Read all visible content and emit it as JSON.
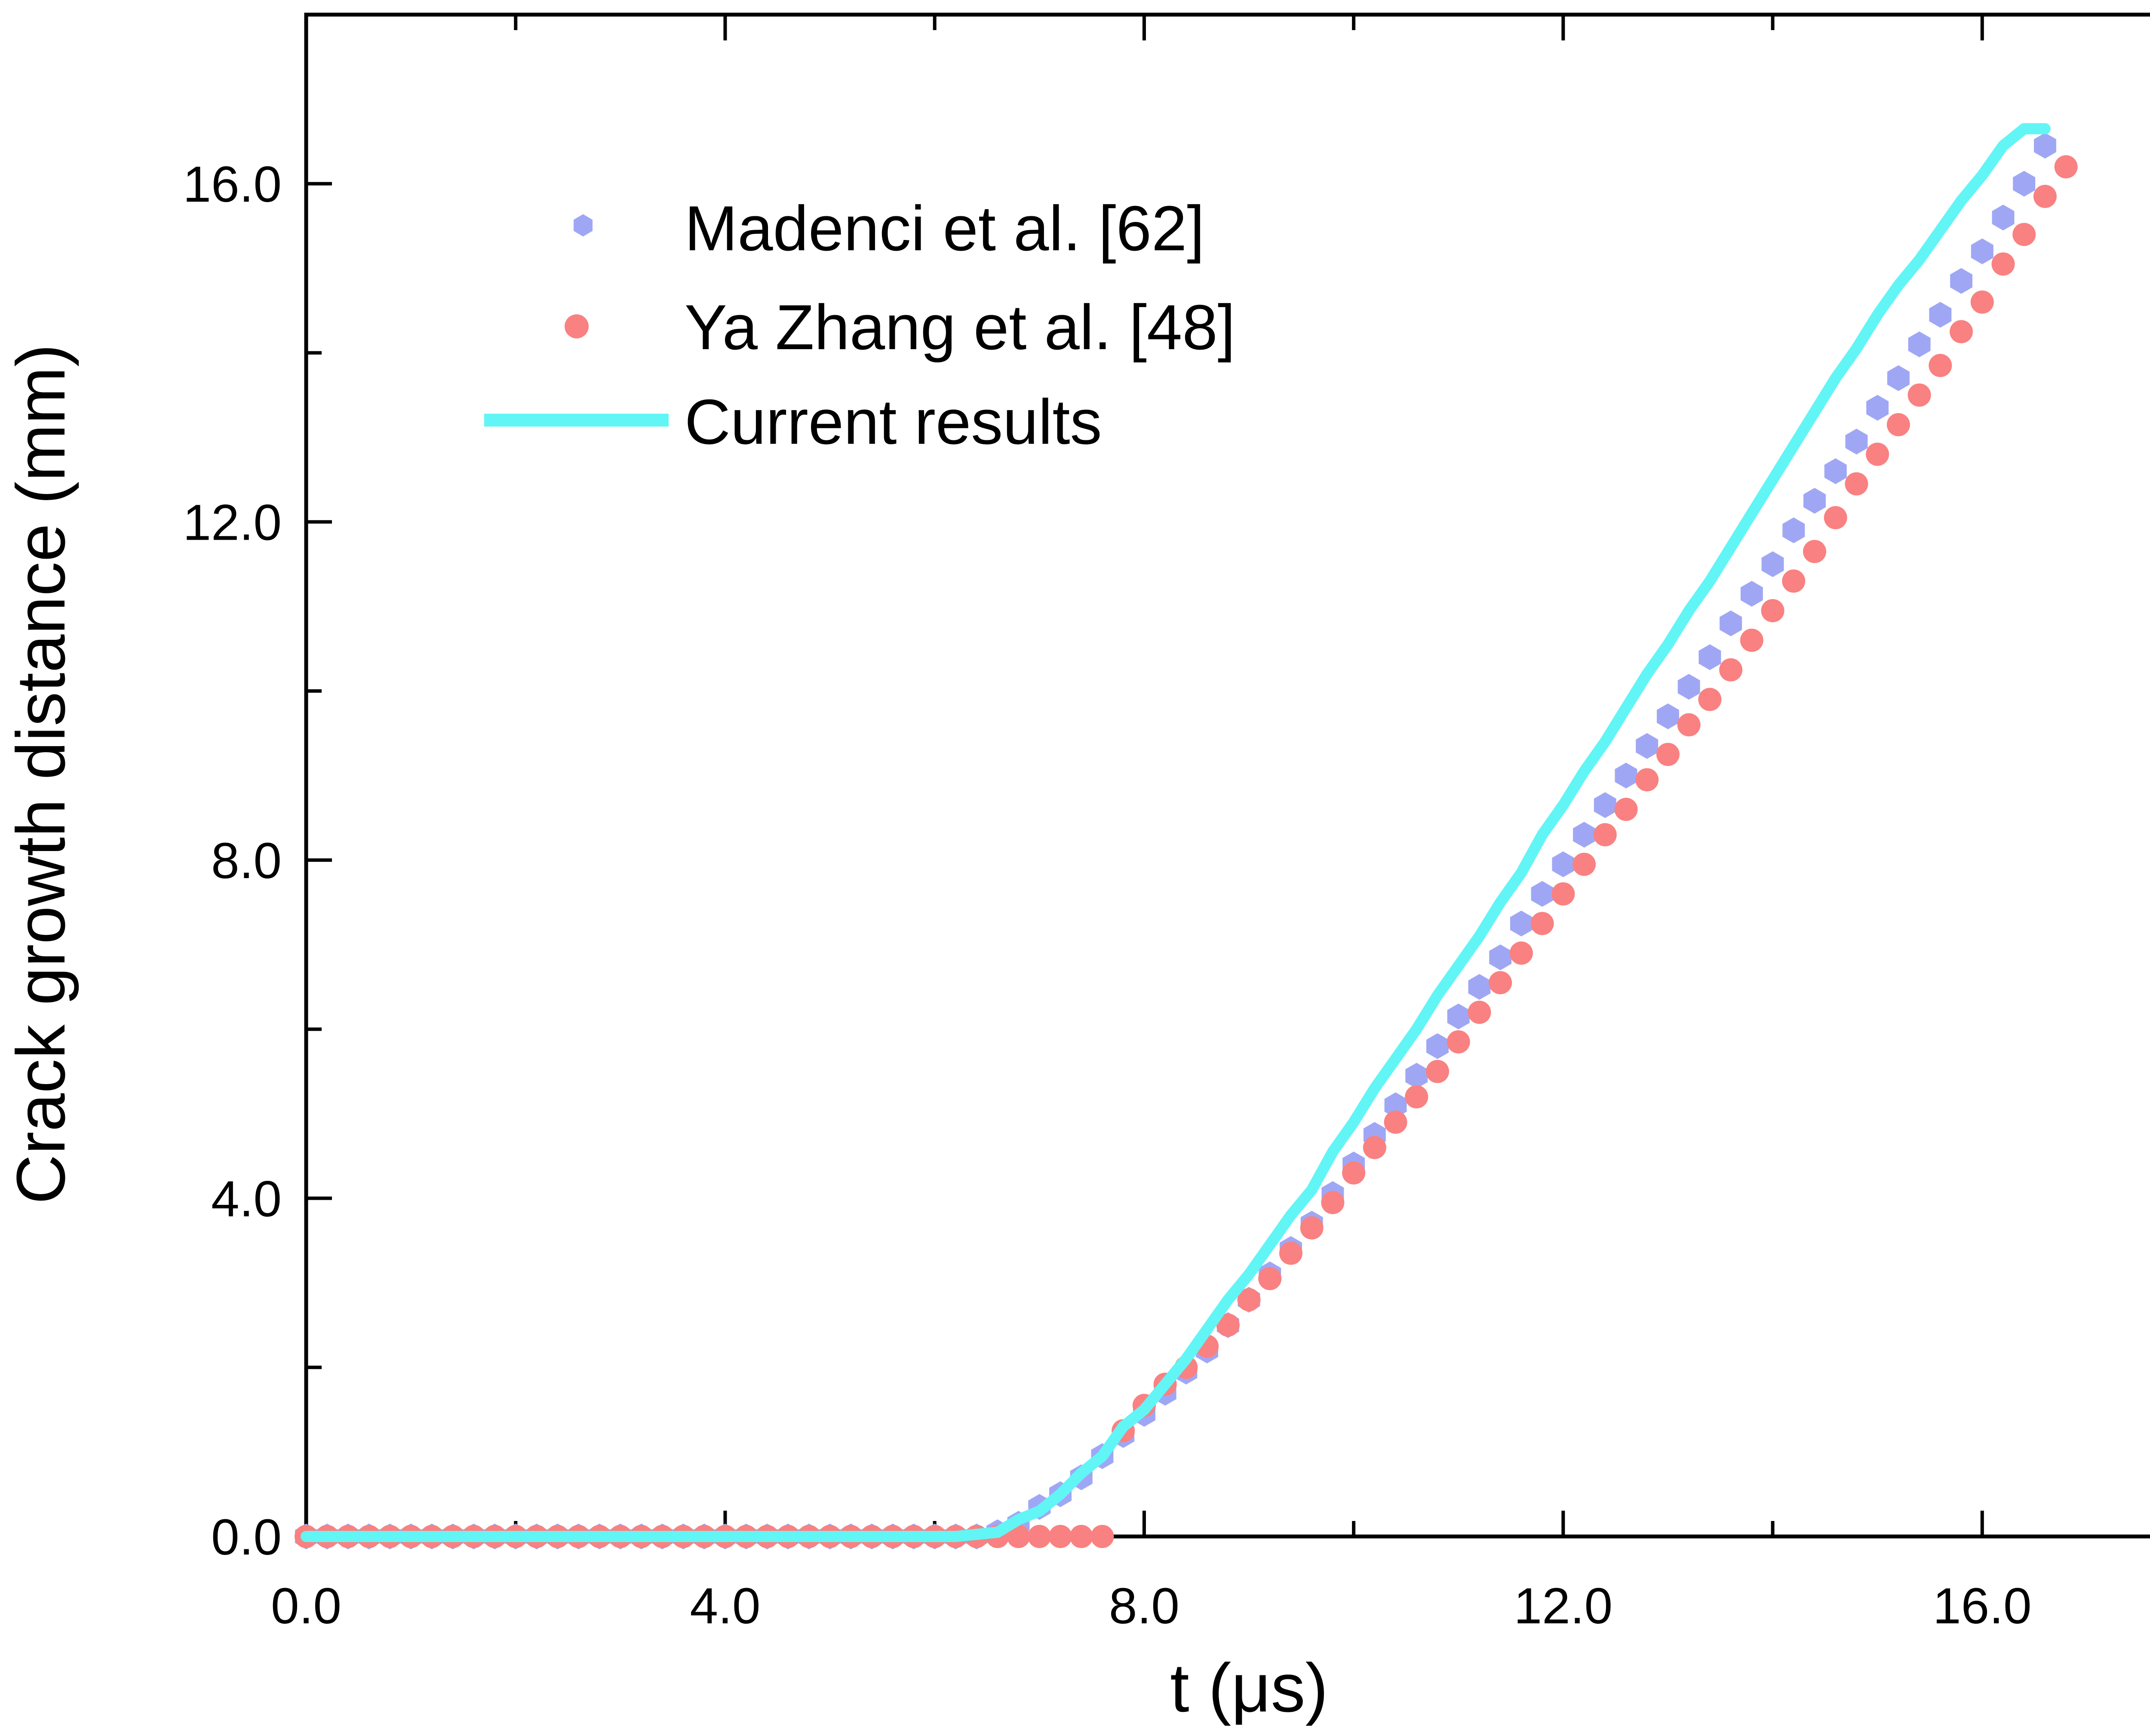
{
  "chart_data": {
    "type": "scatter",
    "title": "",
    "xlabel": "t (μs)",
    "ylabel": "Crack growth distance (mm)",
    "xlim": [
      0,
      18
    ],
    "ylim": [
      0,
      18
    ],
    "xticks": [
      0,
      4,
      8,
      12,
      16
    ],
    "yticks": [
      0,
      4,
      8,
      12,
      16
    ],
    "xtick_labels": [
      "0.0",
      "4.0",
      "8.0",
      "12.0",
      "16.0"
    ],
    "ytick_labels": [
      "0.0",
      "4.0",
      "8.0",
      "12.0",
      "16.0"
    ],
    "minor_ticks": true,
    "grid": false,
    "legend_position": "top-left",
    "series": [
      {
        "name": "Madenci et al. [62]",
        "marker": "hexagon",
        "color": "#9fa7f5",
        "x": [
          0.0,
          0.2,
          0.4,
          0.6,
          0.8,
          1.0,
          1.2,
          1.4,
          1.6,
          1.8,
          2.0,
          2.2,
          2.4,
          2.6,
          2.8,
          3.0,
          3.2,
          3.4,
          3.6,
          3.8,
          4.0,
          4.2,
          4.4,
          4.6,
          4.8,
          5.0,
          5.2,
          5.4,
          5.6,
          5.8,
          6.0,
          6.2,
          6.4,
          6.6,
          6.8,
          7.0,
          7.2,
          7.4,
          7.6,
          7.8,
          8.0,
          8.2,
          8.4,
          8.6,
          8.8,
          9.0,
          9.2,
          9.4,
          9.6,
          9.8,
          10.0,
          10.2,
          10.4,
          10.6,
          10.8,
          11.0,
          11.2,
          11.4,
          11.6,
          11.8,
          12.0,
          12.2,
          12.4,
          12.6,
          12.8,
          13.0,
          13.2,
          13.4,
          13.6,
          13.8,
          14.0,
          14.2,
          14.4,
          14.6,
          14.8,
          15.0,
          15.2,
          15.4,
          15.6,
          15.8,
          16.0,
          16.2,
          16.4,
          16.6
        ],
        "y": [
          0,
          0,
          0,
          0,
          0,
          0,
          0,
          0,
          0,
          0,
          0,
          0,
          0,
          0,
          0,
          0,
          0,
          0,
          0,
          0,
          0,
          0,
          0,
          0,
          0,
          0,
          0,
          0,
          0,
          0,
          0,
          0,
          0,
          0.05,
          0.15,
          0.35,
          0.5,
          0.7,
          0.95,
          1.2,
          1.45,
          1.7,
          1.95,
          2.2,
          2.5,
          2.8,
          3.1,
          3.4,
          3.7,
          4.05,
          4.4,
          4.75,
          5.1,
          5.45,
          5.8,
          6.15,
          6.5,
          6.85,
          7.25,
          7.6,
          7.95,
          8.3,
          8.65,
          9.0,
          9.35,
          9.7,
          10.05,
          10.4,
          10.8,
          11.15,
          11.5,
          11.9,
          12.25,
          12.6,
          12.95,
          13.35,
          13.7,
          14.1,
          14.45,
          14.85,
          15.2,
          15.6,
          16.0,
          16.45
        ]
      },
      {
        "name": "Ya Zhang et al. [48]",
        "marker": "circle",
        "color": "#f98181",
        "x": [
          0.0,
          0.2,
          0.4,
          0.6,
          0.8,
          1.0,
          1.2,
          1.4,
          1.6,
          1.8,
          2.0,
          2.2,
          2.4,
          2.6,
          2.8,
          3.0,
          3.2,
          3.4,
          3.6,
          3.8,
          4.0,
          4.2,
          4.4,
          4.6,
          4.8,
          5.0,
          5.2,
          5.4,
          5.6,
          5.8,
          6.0,
          6.2,
          6.4,
          6.6,
          6.8,
          7.0,
          7.2,
          7.4,
          7.6,
          7.8,
          8.0,
          8.2,
          8.4,
          8.6,
          8.8,
          9.0,
          9.2,
          9.4,
          9.6,
          9.8,
          10.0,
          10.2,
          10.4,
          10.6,
          10.8,
          11.0,
          11.2,
          11.4,
          11.6,
          11.8,
          12.0,
          12.2,
          12.4,
          12.6,
          12.8,
          13.0,
          13.2,
          13.4,
          13.6,
          13.8,
          14.0,
          14.2,
          14.4,
          14.6,
          14.8,
          15.0,
          15.2,
          15.4,
          15.6,
          15.8,
          16.0,
          16.2,
          16.4,
          16.6,
          16.8
        ],
        "y": [
          0,
          0,
          0,
          0,
          0,
          0,
          0,
          0,
          0,
          0,
          0,
          0,
          0,
          0,
          0,
          0,
          0,
          0,
          0,
          0,
          0,
          0,
          0,
          0,
          0,
          0,
          0,
          0,
          0,
          0,
          0,
          0,
          0,
          0,
          0,
          0,
          0,
          0,
          0,
          1.25,
          1.55,
          1.8,
          2.0,
          2.25,
          2.5,
          2.8,
          3.05,
          3.35,
          3.65,
          3.95,
          4.3,
          4.6,
          4.9,
          5.2,
          5.5,
          5.85,
          6.2,
          6.55,
          6.9,
          7.25,
          7.6,
          7.95,
          8.3,
          8.6,
          8.95,
          9.25,
          9.6,
          9.9,
          10.25,
          10.6,
          10.95,
          11.3,
          11.65,
          12.05,
          12.45,
          12.8,
          13.15,
          13.5,
          13.85,
          14.25,
          14.6,
          15.05,
          15.4,
          15.85,
          16.2
        ]
      },
      {
        "name": "Current results",
        "marker": "line",
        "color": "#62f5f5",
        "x": [
          0,
          6.2,
          6.6,
          6.8,
          7.0,
          7.2,
          7.4,
          7.6,
          7.8,
          8.0,
          8.2,
          8.4,
          8.6,
          8.8,
          9.0,
          9.2,
          9.4,
          9.6,
          9.8,
          10.0,
          10.2,
          10.4,
          10.6,
          10.8,
          11.0,
          11.2,
          11.4,
          11.6,
          11.8,
          12.0,
          12.2,
          12.4,
          12.6,
          12.8,
          13.0,
          13.2,
          13.4,
          13.6,
          13.8,
          14.0,
          14.2,
          14.4,
          14.6,
          14.8,
          15.0,
          15.2,
          15.4,
          15.6,
          15.8,
          16.0,
          16.2,
          16.4,
          16.6
        ],
        "y": [
          0,
          0,
          0.05,
          0.2,
          0.3,
          0.5,
          0.75,
          0.95,
          1.3,
          1.5,
          1.8,
          2.1,
          2.45,
          2.8,
          3.1,
          3.45,
          3.8,
          4.1,
          4.55,
          4.9,
          5.3,
          5.65,
          6.0,
          6.4,
          6.75,
          7.1,
          7.5,
          7.85,
          8.3,
          8.65,
          9.05,
          9.4,
          9.8,
          10.2,
          10.55,
          10.95,
          11.3,
          11.7,
          12.1,
          12.5,
          12.9,
          13.3,
          13.7,
          14.05,
          14.45,
          14.8,
          15.1,
          15.45,
          15.8,
          16.1,
          16.45,
          16.65,
          16.65
        ]
      }
    ]
  }
}
